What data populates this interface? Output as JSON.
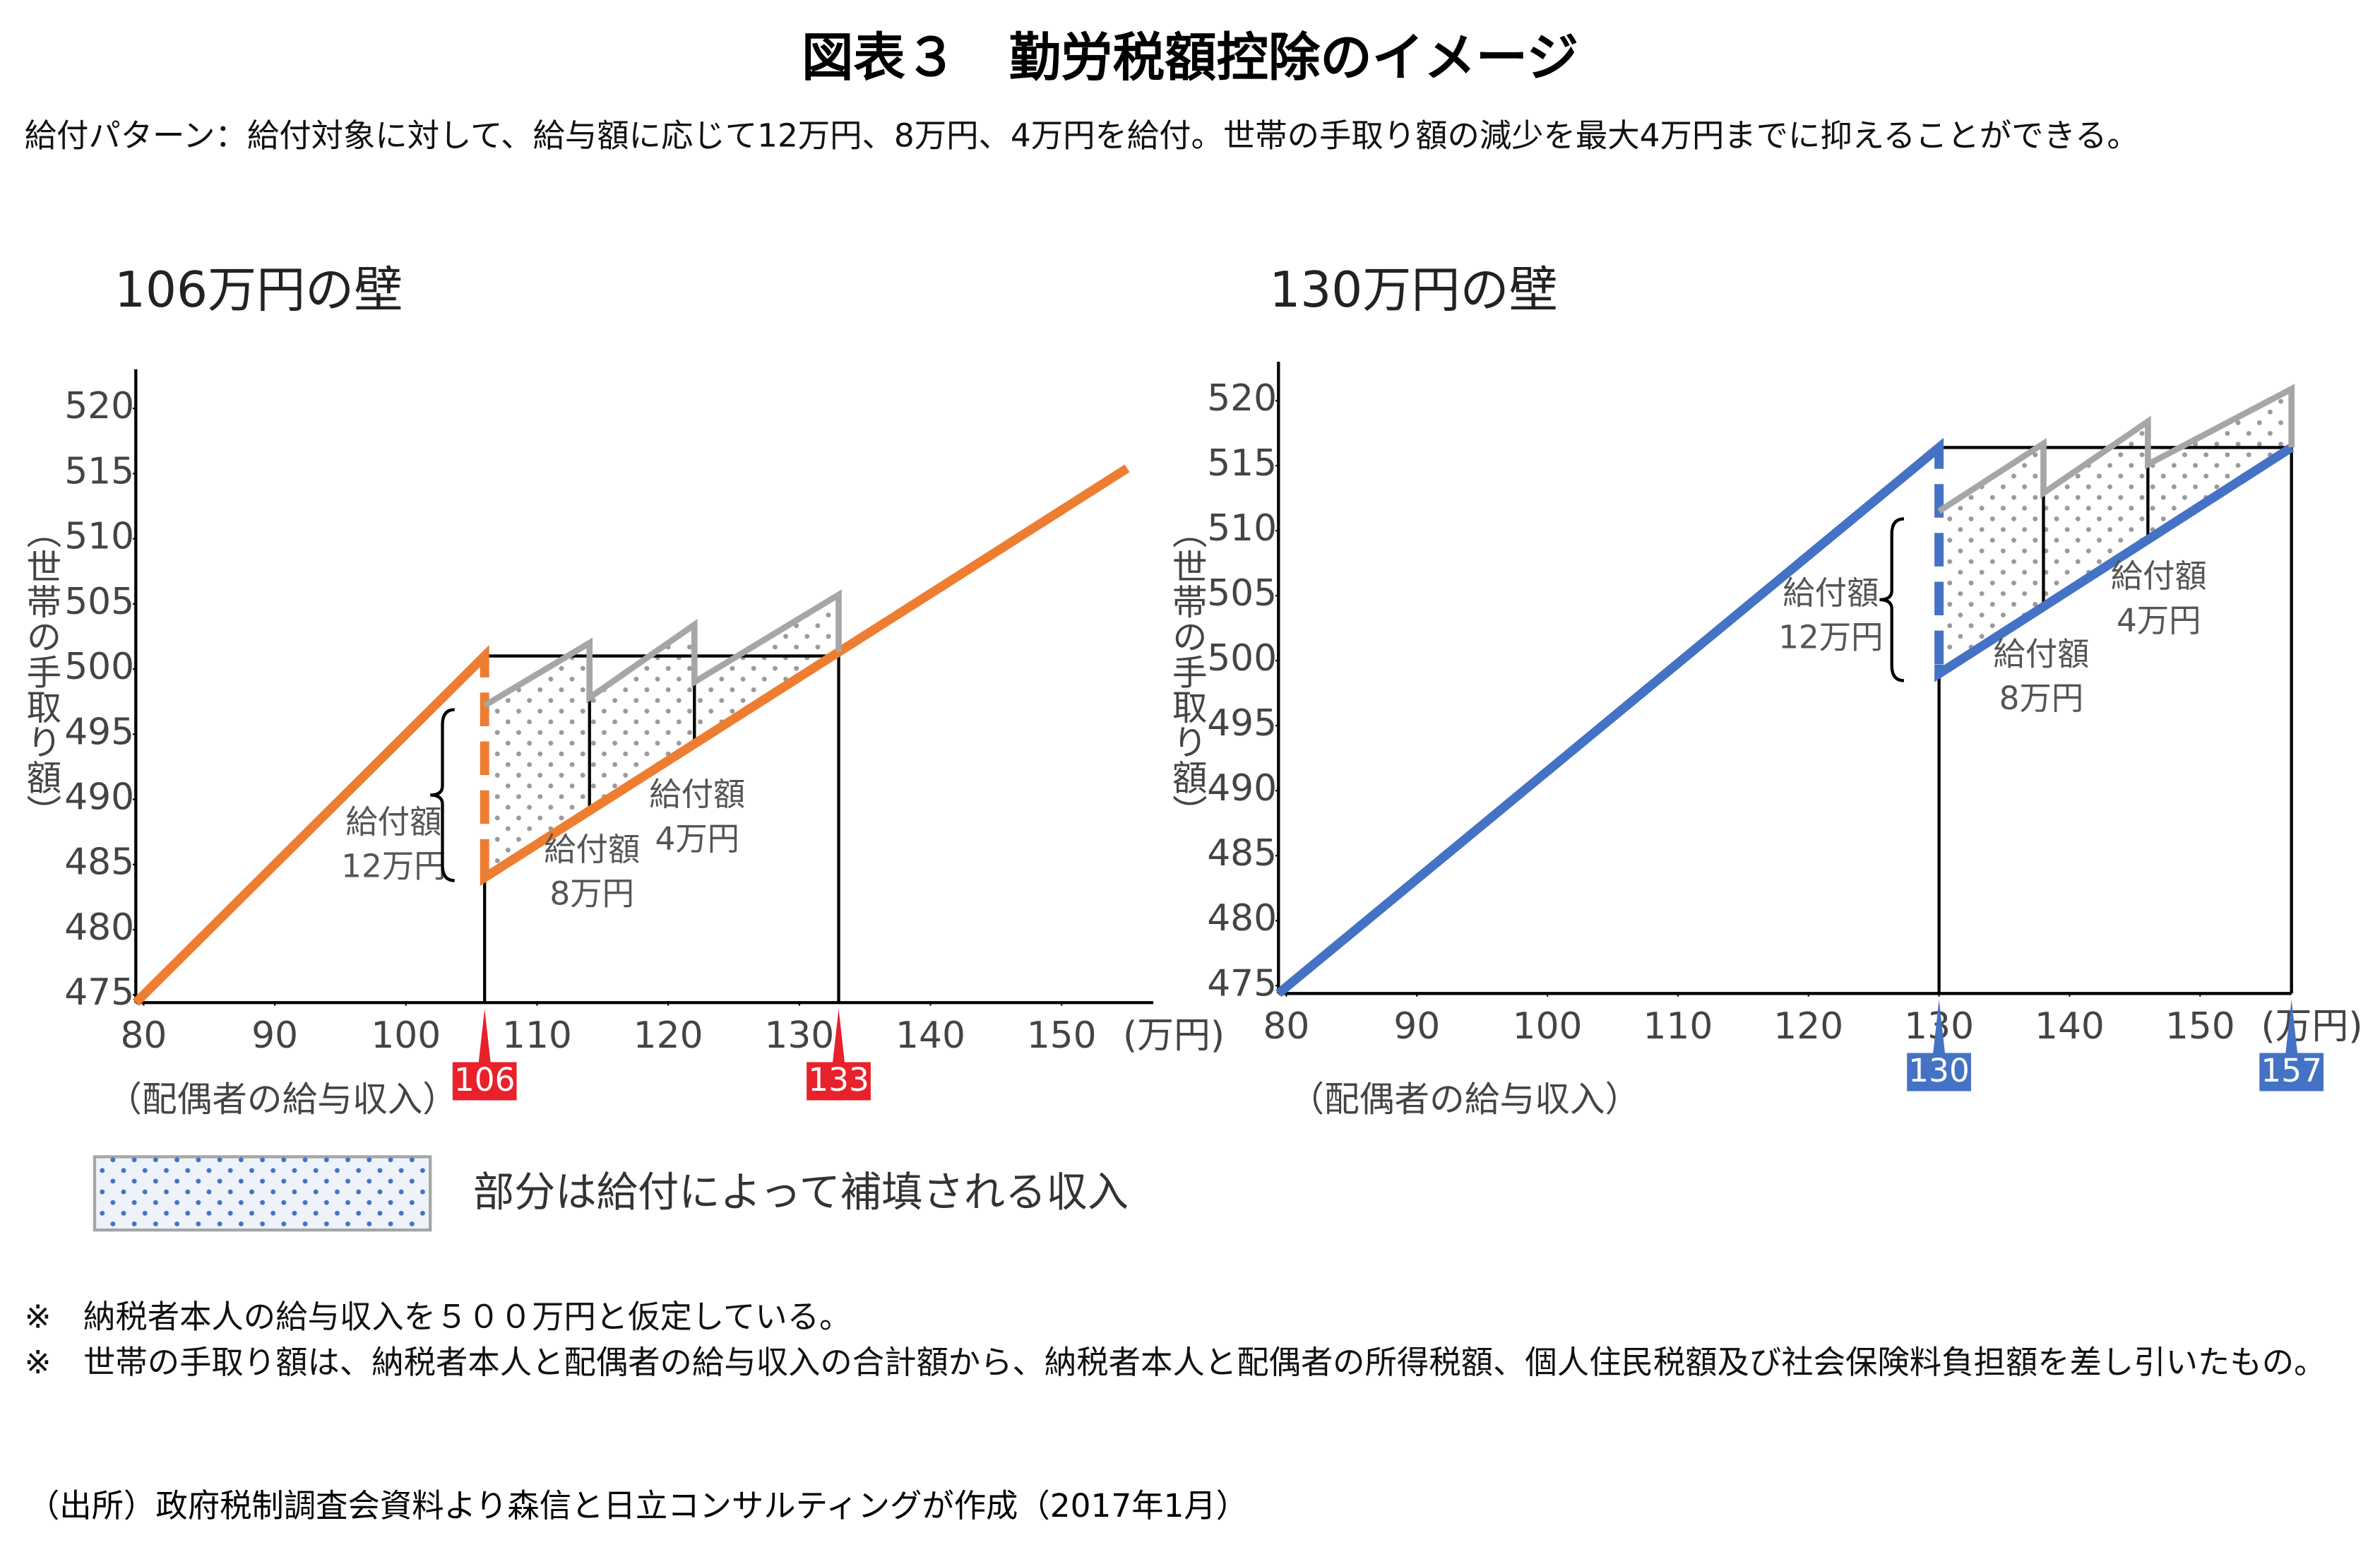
{
  "title": "図表３　勤労税額控除のイメージ",
  "subtitle": "給付パターン：給付対象に対して、給与額に応じて12万円、8万円、4万円を給付。世帯の手取り額の減少を最大4万円までに抑えることができる。",
  "legend_text": "部分は給付によって補填される収入",
  "legend_color": "#4472c4",
  "notes": [
    "※　納税者本人の給与収入を５００万円と仮定している。",
    "※　世帯の手取り額は、納税者本人と配偶者の給与収入の合計額から、納税者本人と配偶者の所得税額、個人住民税額及び社会保険料負担額を差し引いたもの。"
  ],
  "source": "（出所）政府税制調査会資料より森信と日立コンサルティングが作成（2017年1月）",
  "chart_data": [
    {
      "type": "line",
      "title": "106万円の壁",
      "xlabel": "（配偶者の給与収入）",
      "ylabel": "（世帯の手取り額）",
      "x_unit": "(万円)",
      "xlim": [
        79.4,
        157
      ],
      "ylim": [
        474.4,
        523
      ],
      "xticks": [
        80,
        90,
        100,
        110,
        120,
        130,
        140,
        150
      ],
      "yticks": [
        475,
        480,
        485,
        490,
        495,
        500,
        505,
        510,
        515,
        520
      ],
      "series": [
        {
          "color": "#ed7d31",
          "x": [
            79.4,
            106,
            106,
            155
          ],
          "values": [
            474.4,
            501,
            484,
            515.4
          ]
        },
        {
          "color": "#a6a6a6",
          "x": [
            106,
            114,
            114,
            122,
            122,
            133,
            133
          ],
          "values": [
            497.2,
            502,
            497.8,
            503.4,
            499,
            505.7,
            501.3
          ]
        }
      ],
      "markers": [
        106,
        133
      ],
      "marker_color": "#e8212a",
      "dot_color": "#9a9a9a",
      "annotations": [
        [
          "給付額",
          "12万円"
        ],
        [
          "給付額",
          "8万円"
        ],
        [
          "給付額",
          "4万円"
        ]
      ]
    },
    {
      "type": "line",
      "title": "130万円の壁",
      "xlabel": "（配偶者の給与収入）",
      "ylabel": "（世帯の手取り額）",
      "x_unit": "(万円)",
      "xlim": [
        79.4,
        157
      ],
      "ylim": [
        474.4,
        523
      ],
      "xticks": [
        80,
        90,
        100,
        110,
        120,
        130,
        140,
        150
      ],
      "yticks": [
        475,
        480,
        485,
        490,
        495,
        500,
        505,
        510,
        515,
        520
      ],
      "series": [
        {
          "color": "#4472c4",
          "x": [
            79.4,
            130,
            130,
            157
          ],
          "values": [
            474.4,
            516.4,
            499,
            516.4
          ]
        },
        {
          "color": "#a6a6a6",
          "x": [
            130,
            138,
            138,
            146,
            146,
            157,
            157
          ],
          "values": [
            511.5,
            516.7,
            512.9,
            518.4,
            515.1,
            520.9,
            516.4
          ]
        }
      ],
      "markers": [
        130,
        157
      ],
      "marker_color": "#4472c4",
      "dot_color": "#9a9a9a",
      "annotations": [
        [
          "給付額",
          "12万円"
        ],
        [
          "給付額",
          "8万円"
        ],
        [
          "給付額",
          "4万円"
        ]
      ]
    }
  ]
}
